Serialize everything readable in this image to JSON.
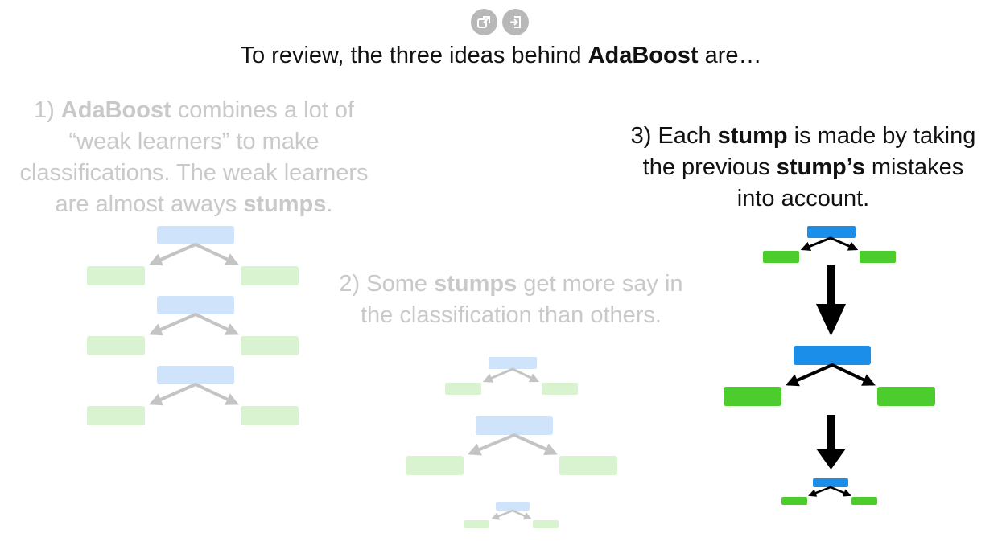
{
  "toolbar": {
    "popout_icon": "popout-icon",
    "enter_icon": "enter-icon"
  },
  "title": {
    "prefix": "To review, the three ideas behind ",
    "bold": "AdaBoost",
    "suffix": " are…"
  },
  "idea1": {
    "line1_prefix": "1) ",
    "line1_bold": "AdaBoost",
    "line1_suffix": " combines a lot of",
    "line2": "“weak learners” to make",
    "line3": "classifications. The weak learners",
    "line4_prefix": "are almost aways ",
    "line4_bold": "stumps",
    "line4_suffix": "."
  },
  "idea2": {
    "line1_prefix": "2) Some ",
    "line1_bold": "stumps",
    "line1_suffix": " get more say in",
    "line2": "the classification than others."
  },
  "idea3": {
    "line1_prefix": "3) Each ",
    "line1_bold": "stump",
    "line1_suffix": " is made by taking",
    "line2_prefix": "the previous ",
    "line2_bold": "stump’s",
    "line2_suffix": " mistakes",
    "line3": "into account."
  },
  "colors": {
    "root_faded": "#cfe4fb",
    "leaf_faded": "#d9f2d0",
    "arrow_faded": "#c4c4c4",
    "root_strong": "#1a8ee8",
    "leaf_strong": "#4dcc2e",
    "arrow_strong": "#000000",
    "text_faded": "#c9c9c9",
    "text_dark": "#111111"
  }
}
